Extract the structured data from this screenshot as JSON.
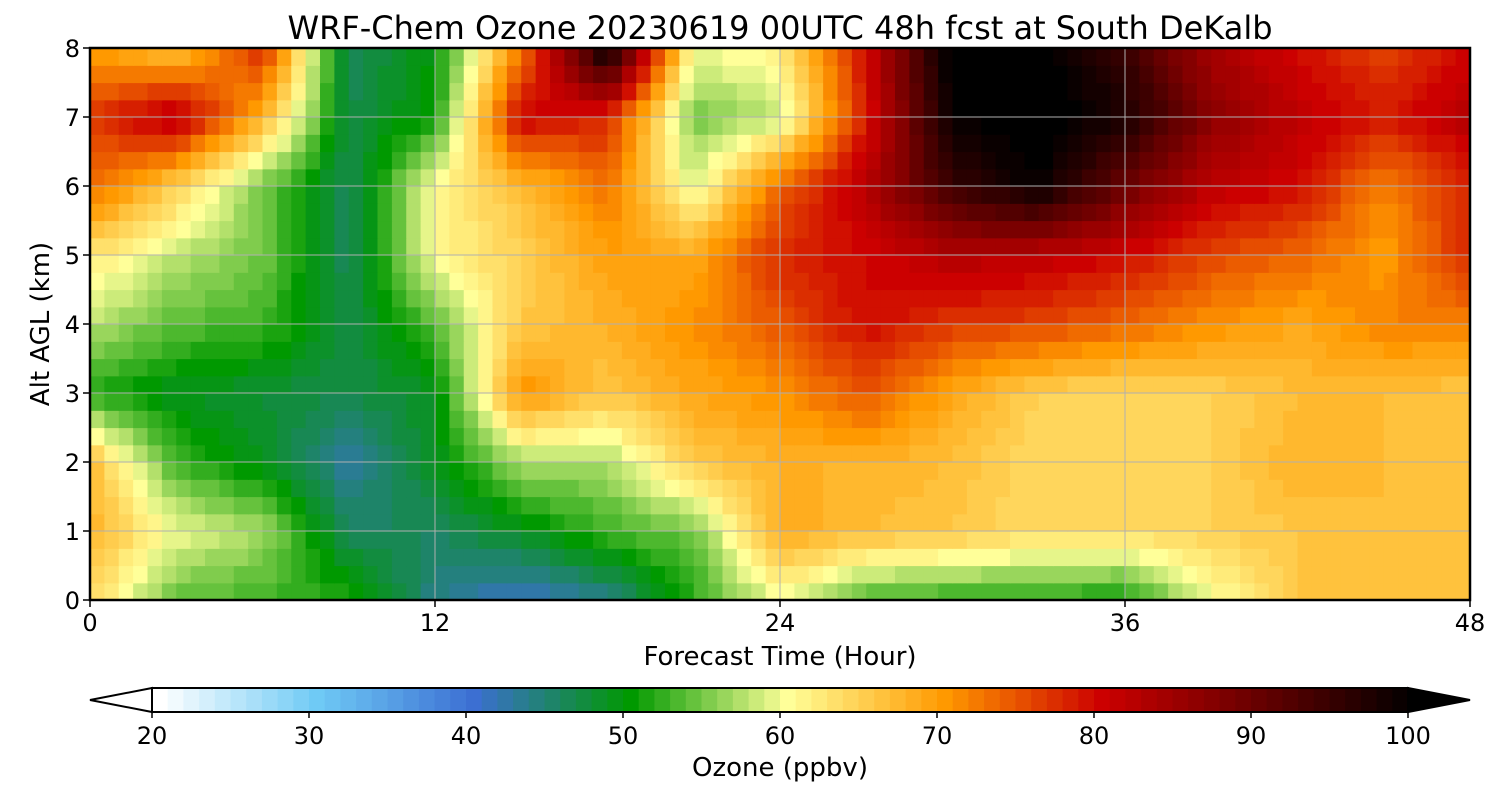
{
  "chart_data": {
    "type": "heatmap",
    "title": "WRF-Chem Ozone  20230619 00UTC 48h fcst at South DeKalb",
    "xlabel": "Forecast Time (Hour)",
    "ylabel": "Alt AGL (km)",
    "xlim": [
      0,
      48
    ],
    "ylim": [
      0,
      8
    ],
    "x_ticks": [
      0,
      12,
      24,
      36,
      48
    ],
    "y_ticks": [
      0,
      1,
      2,
      3,
      4,
      5,
      6,
      7,
      8
    ],
    "grid": true,
    "x": [
      0,
      3,
      6,
      9,
      12,
      15,
      18,
      21,
      24,
      27,
      30,
      33,
      36,
      39,
      42,
      45,
      48
    ],
    "y": [
      0,
      1,
      2,
      3,
      4,
      5,
      6,
      7,
      8
    ],
    "z": [
      [
        64,
        54,
        53,
        52,
        44,
        41,
        44,
        52,
        60,
        53,
        52,
        52,
        51,
        60,
        66,
        67,
        66
      ],
      [
        68,
        60,
        57,
        46,
        46,
        49,
        53,
        55,
        69,
        67,
        66,
        64,
        64,
        65,
        66,
        67,
        66
      ],
      [
        67,
        53,
        49,
        43,
        49,
        57,
        57,
        66,
        68,
        68,
        67,
        64,
        64,
        65,
        68,
        67,
        66
      ],
      [
        52,
        49,
        48,
        47,
        49,
        71,
        66,
        69,
        71,
        75,
        69,
        65,
        64,
        65,
        67,
        67,
        66
      ],
      [
        58,
        54,
        53,
        47,
        54,
        66,
        68,
        71,
        75,
        80,
        77,
        76,
        74,
        71,
        69,
        72,
        72
      ],
      [
        63,
        58,
        55,
        46,
        61,
        65,
        70,
        69,
        78,
        80,
        83,
        82,
        80,
        76,
        74,
        70,
        78
      ],
      [
        74,
        65,
        55,
        46,
        61,
        67,
        73,
        59,
        74,
        83,
        95,
        100,
        90,
        82,
        80,
        72,
        78
      ],
      [
        77,
        83,
        68,
        47,
        51,
        81,
        78,
        55,
        58,
        79,
        100,
        102,
        98,
        87,
        82,
        79,
        83
      ],
      [
        70,
        66,
        78,
        46,
        50,
        72,
        101,
        60,
        62,
        80,
        102,
        101,
        95,
        84,
        80,
        76,
        80
      ]
    ],
    "colorbar": {
      "label": "Ozone  (ppbv)",
      "min": 20,
      "max": 100,
      "step": 1,
      "ticks": [
        20,
        30,
        40,
        50,
        60,
        70,
        80,
        90,
        100
      ],
      "extend": "both",
      "orientation": "horizontal",
      "colors": [
        "#ffffff",
        "#6fcaf5",
        "#3c6fd2",
        "#009900",
        "#ffff99",
        "#ff9900",
        "#cc0000",
        "#000000"
      ],
      "color_stops": [
        20,
        30,
        40,
        50,
        60,
        70,
        80,
        100
      ]
    }
  }
}
